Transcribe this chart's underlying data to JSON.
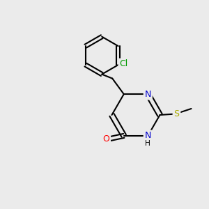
{
  "background_color": "#ebebeb",
  "bond_color": "#000000",
  "bond_width": 1.5,
  "atom_colors": {
    "O": "#ff0000",
    "N": "#0000cc",
    "S": "#aaaa00",
    "Cl": "#009900",
    "C": "#000000",
    "H": "#000000"
  },
  "font_size": 9,
  "font_size_small": 7.5
}
